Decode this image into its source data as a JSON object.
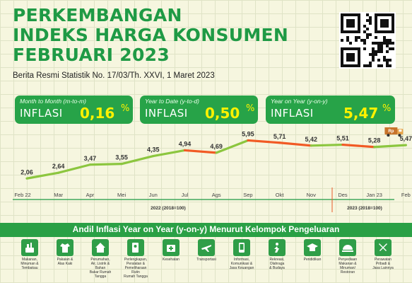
{
  "header": {
    "title_lines": [
      "PERKEMBANGAN",
      "INDEKS HARGA KONSUMEN",
      "FEBRUARI 2023"
    ],
    "subtitle": "Berita Resmi Statistik No. 17/03/Th. XXVI, 1 Maret 2023"
  },
  "cards": [
    {
      "label": "Month to Month (m-to-m)",
      "word": "INFLASI",
      "value": "0,16",
      "unit": "%"
    },
    {
      "label": "Year to Date (y-to-d)",
      "word": "INFLASI",
      "value": "0,50",
      "unit": "%"
    },
    {
      "label": "Year on Year (y-on-y)",
      "word": "INFLASI",
      "value": "5,47",
      "unit": "%"
    }
  ],
  "chart_data": {
    "type": "line",
    "x": [
      "Feb 22",
      "Mar",
      "Apr",
      "Mei",
      "Jun",
      "Jul",
      "Ags",
      "Sep",
      "Okt",
      "Nov",
      "Des",
      "Jan 23",
      "Feb"
    ],
    "values": [
      2.06,
      2.64,
      3.47,
      3.55,
      4.35,
      4.94,
      4.69,
      5.95,
      5.71,
      5.42,
      5.51,
      5.28,
      5.47
    ],
    "labels": [
      "2,06",
      "2,64",
      "3,47",
      "3,55",
      "4,35",
      "4,94",
      "4,69",
      "5,95",
      "5,71",
      "5,42",
      "5,51",
      "5,28",
      "5,47"
    ],
    "ylim": [
      1.5,
      6.2
    ],
    "rising_color": "#8cc63f",
    "falling_color": "#f15a24",
    "period_labels": [
      "2022 (2018=100)",
      "2023 (2018=100)"
    ],
    "truck_badge": "Rp",
    "grid": false
  },
  "andil": {
    "title": "Andil Inflasi Year on Year (y-on-y) Menurut Kelompok Pengeluaran",
    "categories": [
      {
        "icon": "food-icon",
        "label": [
          "Makanan,",
          "Minuman &",
          "Tembakau"
        ]
      },
      {
        "icon": "clothing-icon",
        "label": [
          "Pakaian &",
          "Alas Kaki"
        ]
      },
      {
        "icon": "house-icon",
        "label": [
          "Perumahan,",
          "Air, Listrik &",
          "Bahan",
          "Bakar Rumah",
          "Tangga"
        ]
      },
      {
        "icon": "household-equipment-icon",
        "label": [
          "Perlengkapan,",
          "Peralatan &",
          "Pemeliharaan",
          "Rutin",
          "Rumah Tangga"
        ]
      },
      {
        "icon": "health-icon",
        "label": [
          "Kesehatan"
        ]
      },
      {
        "icon": "airplane-icon",
        "label": [
          "Transportasi"
        ]
      },
      {
        "icon": "phone-icon",
        "label": [
          "Informasi,",
          "Komunikasi &",
          "Jasa Keuangan"
        ]
      },
      {
        "icon": "recreation-icon",
        "label": [
          "Rekreasi,",
          "Olahraga",
          "& Budaya"
        ]
      },
      {
        "icon": "graduation-cap-icon",
        "label": [
          "Pendidikan"
        ]
      },
      {
        "icon": "restaurant-icon",
        "label": [
          "Penyediaan",
          "Makanan &",
          "Minuman/",
          "Restoran"
        ]
      },
      {
        "icon": "personal-care-icon",
        "label": [
          "Perawatan",
          "Pribadi &",
          "Jasa Lainnya"
        ]
      }
    ]
  }
}
